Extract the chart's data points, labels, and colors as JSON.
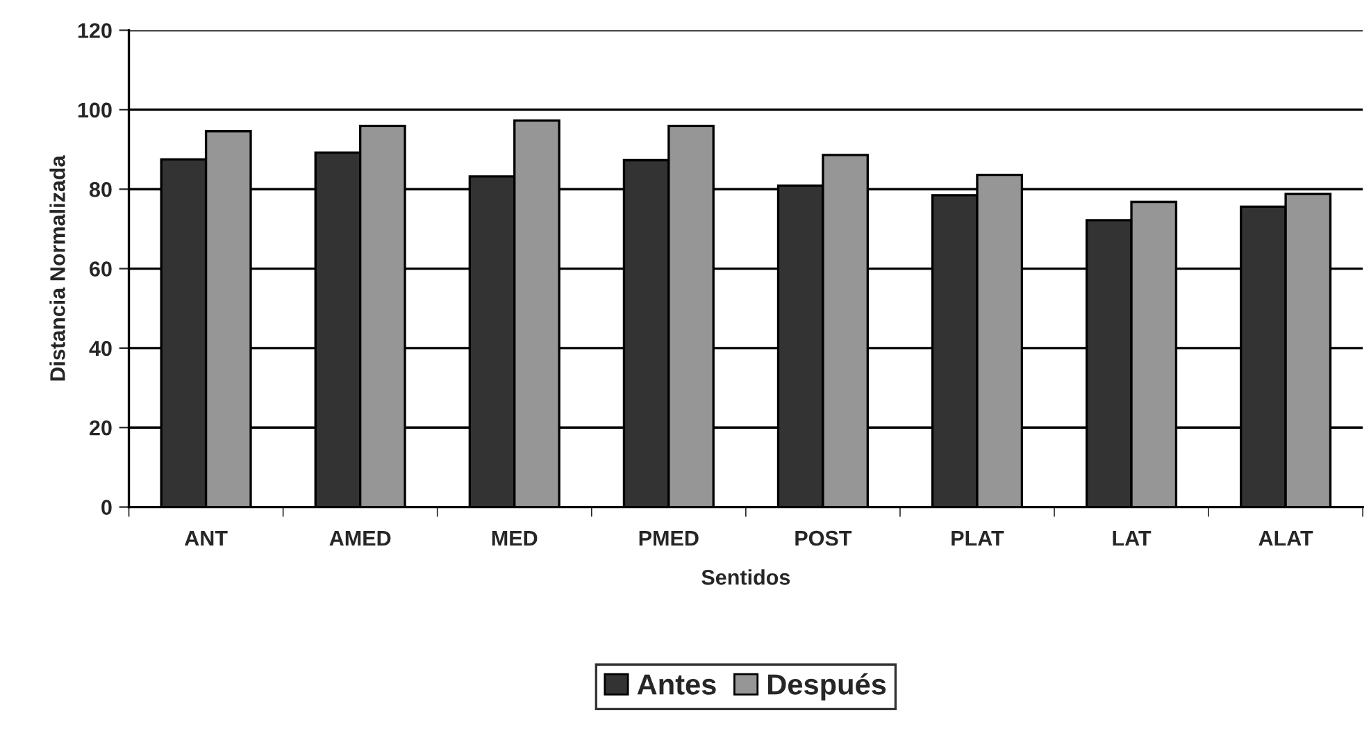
{
  "chart_data": {
    "type": "bar",
    "xlabel": "Sentidos",
    "ylabel": "Distancia Normalizada",
    "categories": [
      "ANT",
      "AMED",
      "MED",
      "PMED",
      "POST",
      "PLAT",
      "LAT",
      "ALAT"
    ],
    "series": [
      {
        "name": "Antes",
        "color": "#333333",
        "values": [
          87.5,
          89.2,
          83.2,
          87.3,
          80.9,
          78.5,
          72.2,
          75.6
        ]
      },
      {
        "name": "Después",
        "color": "#969696",
        "values": [
          94.6,
          95.9,
          97.3,
          95.9,
          88.6,
          83.6,
          76.8,
          78.8
        ]
      }
    ],
    "ylim": [
      0,
      120
    ],
    "yticks": [
      0,
      20,
      40,
      60,
      80,
      100,
      120
    ],
    "grid": "y",
    "legend": "bottom"
  }
}
